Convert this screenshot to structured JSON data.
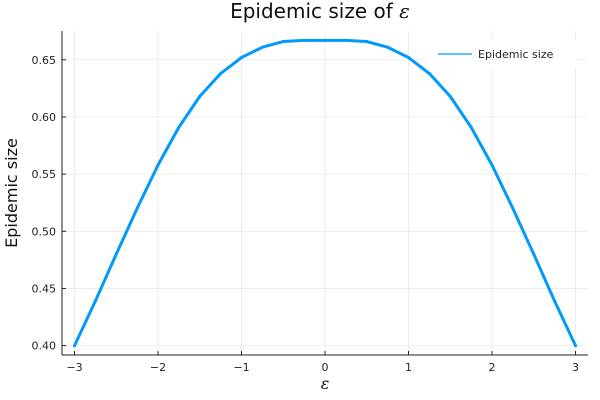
{
  "chart_data": {
    "type": "line",
    "title": "Epidemic size of ",
    "title_symbol": "ε",
    "xlabel": "ε",
    "ylabel": "Epidemic size",
    "xlim": [
      -3.15,
      3.15
    ],
    "ylim": [
      0.3918,
      0.6752
    ],
    "x_ticks": [
      -3,
      -2,
      -1,
      0,
      1,
      2,
      3
    ],
    "x_tick_labels": [
      "−3",
      "−2",
      "−1",
      "0",
      "1",
      "2",
      "3"
    ],
    "y_ticks": [
      0.4,
      0.45,
      0.5,
      0.55,
      0.6,
      0.65
    ],
    "y_tick_labels": [
      "0.40",
      "0.45",
      "0.50",
      "0.55",
      "0.60",
      "0.65"
    ],
    "grid": true,
    "legend_position": "top-right",
    "series": [
      {
        "name": "Epidemic size",
        "color": "#009AFA",
        "x": [
          -3.0,
          -2.75,
          -2.5,
          -2.25,
          -2.0,
          -1.75,
          -1.5,
          -1.25,
          -1.0,
          -0.75,
          -0.5,
          -0.25,
          0.0,
          0.25,
          0.5,
          0.75,
          1.0,
          1.25,
          1.5,
          1.75,
          2.0,
          2.25,
          2.5,
          2.75,
          3.0
        ],
        "y": [
          0.4,
          0.439,
          0.48,
          0.52,
          0.558,
          0.591,
          0.618,
          0.638,
          0.652,
          0.661,
          0.666,
          0.667,
          0.667,
          0.667,
          0.666,
          0.661,
          0.652,
          0.638,
          0.618,
          0.591,
          0.558,
          0.52,
          0.48,
          0.439,
          0.4
        ]
      }
    ]
  }
}
